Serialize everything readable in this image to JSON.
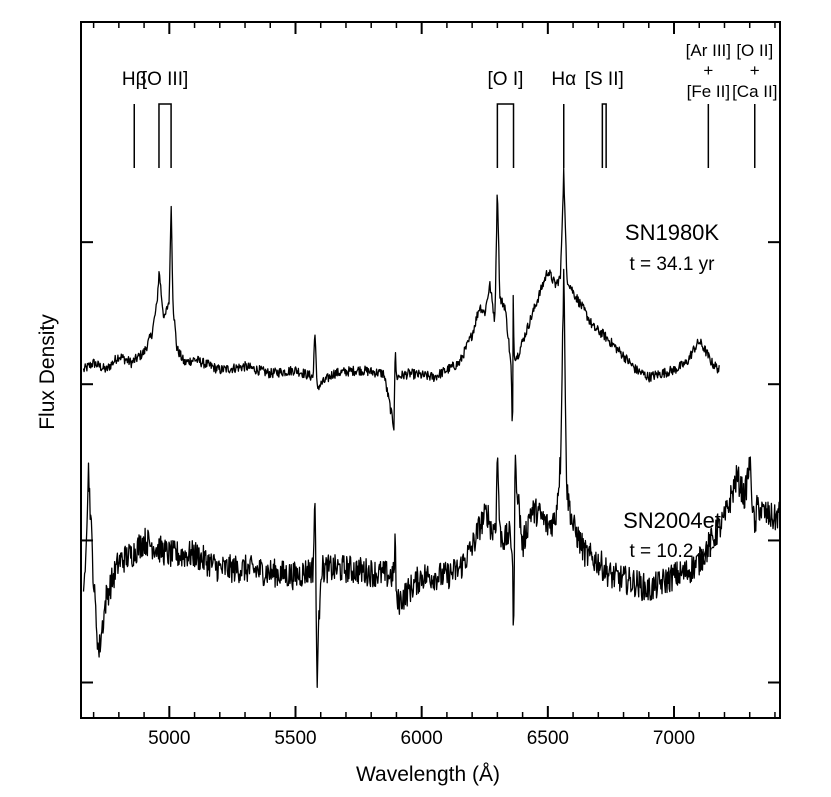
{
  "chart_data": {
    "type": "line",
    "title": "",
    "xlabel": "Wavelength (Å)",
    "ylabel": "Flux Density",
    "xlim": [
      4650,
      7420
    ],
    "xticks": [
      5000,
      5500,
      6000,
      6500,
      7000
    ],
    "xtick_labels": [
      "5000",
      "5500",
      "6000",
      "6500",
      "7000"
    ],
    "ylim": [
      -1.3,
      8.5
    ],
    "grid": false,
    "line_ids": [
      {
        "label": "Hβ",
        "sub": "",
        "wavelengths": [
          4861
        ]
      },
      {
        "label": "[O III]",
        "sub": "",
        "wavelengths": [
          4959,
          5007
        ]
      },
      {
        "label": "[O I]",
        "sub": "",
        "wavelengths": [
          6300,
          6364
        ]
      },
      {
        "label": "Hα",
        "sub": "",
        "wavelengths": [
          6563
        ]
      },
      {
        "label": "[S II]",
        "sub": "",
        "wavelengths": [
          6716,
          6731
        ]
      },
      {
        "label": "[Ar III]",
        "sub": "[Fe II]",
        "wavelengths": [
          7136
        ]
      },
      {
        "label": "[O II]",
        "sub": "[Ca II]",
        "wavelengths": [
          7320
        ]
      }
    ],
    "series": [
      {
        "name": "SN1980K",
        "annotation": "t = 34.1 yr",
        "baseline": 3.45,
        "x": [
          4660,
          4700,
          4750,
          4800,
          4850,
          4900,
          4930,
          4950,
          4960,
          4970,
          4980,
          5000,
          5007,
          5015,
          5030,
          5060,
          5100,
          5200,
          5300,
          5400,
          5500,
          5570,
          5577,
          5585,
          5650,
          5750,
          5850,
          5890,
          5895,
          5900,
          5950,
          6050,
          6150,
          6200,
          6230,
          6250,
          6270,
          6290,
          6300,
          6310,
          6330,
          6345,
          6355,
          6360,
          6363,
          6366,
          6380,
          6420,
          6460,
          6500,
          6530,
          6550,
          6563,
          6575,
          6600,
          6650,
          6680,
          6720,
          6800,
          6850,
          6900,
          6950,
          7000,
          7050,
          7080,
          7100,
          7120,
          7150,
          7180
        ],
        "y": [
          3.6,
          3.7,
          3.6,
          3.8,
          3.7,
          3.85,
          4.1,
          4.5,
          5.0,
          4.6,
          4.3,
          4.6,
          6.0,
          4.5,
          3.9,
          3.7,
          3.75,
          3.6,
          3.65,
          3.55,
          3.6,
          3.5,
          4.2,
          3.35,
          3.55,
          3.6,
          3.55,
          2.8,
          3.9,
          3.5,
          3.55,
          3.5,
          3.7,
          4.1,
          4.5,
          4.4,
          4.8,
          4.3,
          6.2,
          4.6,
          4.5,
          4.0,
          3.6,
          2.5,
          4.8,
          3.8,
          3.8,
          4.2,
          4.6,
          5.0,
          4.8,
          4.9,
          6.4,
          4.9,
          4.7,
          4.4,
          4.2,
          4.1,
          3.8,
          3.6,
          3.5,
          3.55,
          3.6,
          3.7,
          3.9,
          4.0,
          3.9,
          3.7,
          3.6
        ],
        "noise": 0.07
      },
      {
        "name": "SN2004et",
        "annotation": "t = 10.2 yr",
        "baseline": 0.0,
        "x": [
          4660,
          4680,
          4700,
          4720,
          4750,
          4800,
          4850,
          4900,
          5000,
          5100,
          5200,
          5300,
          5400,
          5500,
          5570,
          5577,
          5585,
          5600,
          5700,
          5800,
          5890,
          5895,
          5900,
          6000,
          6100,
          6150,
          6200,
          6230,
          6260,
          6280,
          6295,
          6300,
          6310,
          6330,
          6345,
          6360,
          6364,
          6370,
          6400,
          6430,
          6460,
          6500,
          6530,
          6550,
          6563,
          6575,
          6600,
          6650,
          6700,
          6750,
          6800,
          6850,
          6900,
          6950,
          7000,
          7050,
          7100,
          7150,
          7200,
          7250,
          7280,
          7300,
          7320,
          7330,
          7350,
          7400,
          7420
        ],
        "y": [
          0.3,
          2.2,
          0.6,
          -0.4,
          0.4,
          0.9,
          1.0,
          1.2,
          1.0,
          1.0,
          0.8,
          0.8,
          0.75,
          0.7,
          0.8,
          1.9,
          -0.8,
          0.8,
          0.8,
          0.75,
          0.7,
          1.3,
          0.3,
          0.7,
          0.7,
          0.8,
          1.1,
          1.4,
          1.6,
          1.3,
          1.5,
          2.5,
          1.3,
          1.2,
          1.3,
          1.1,
          -0.5,
          2.3,
          1.1,
          1.6,
          1.6,
          1.4,
          1.5,
          2.3,
          5.0,
          1.9,
          1.4,
          1.0,
          0.9,
          0.7,
          0.65,
          0.6,
          0.5,
          0.6,
          0.7,
          0.75,
          0.9,
          1.2,
          1.5,
          2.1,
          1.8,
          2.3,
          1.3,
          1.7,
          1.6,
          1.5,
          1.6
        ],
        "noise": 0.2
      }
    ]
  }
}
